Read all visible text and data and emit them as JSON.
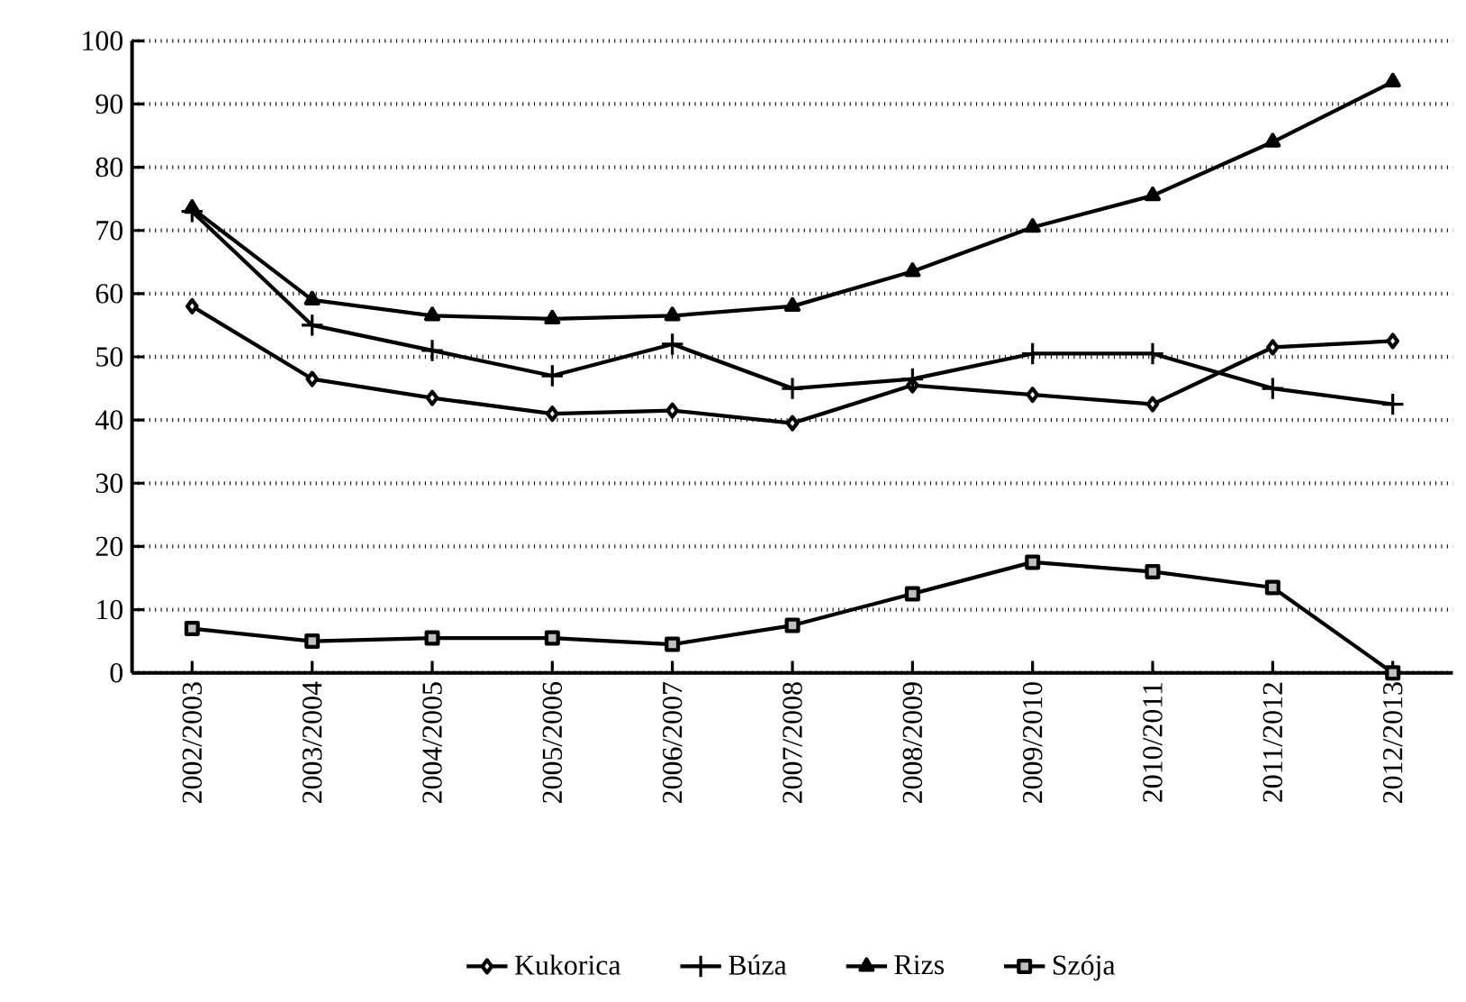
{
  "chart_data": {
    "type": "line",
    "categories": [
      "2002/2003",
      "2003/2004",
      "2004/2005",
      "2005/2006",
      "2006/2007",
      "2007/2008",
      "2008/2009",
      "2009/2010",
      "2010/2011",
      "2011/2012",
      "2012/2013"
    ],
    "series": [
      {
        "name": "Kukorica",
        "color": "#000000",
        "marker": "diamond",
        "values": [
          58,
          46.5,
          43.5,
          41,
          41.5,
          39.5,
          45.5,
          44,
          42.5,
          51.5,
          52.5
        ]
      },
      {
        "name": "Búza",
        "color": "#000000",
        "marker": "cross",
        "values": [
          73,
          55,
          51,
          47,
          52,
          45,
          46.5,
          50.5,
          50.5,
          45,
          42.5
        ]
      },
      {
        "name": "Rizs",
        "color": "#000000",
        "marker": "triangle",
        "values": [
          73.5,
          59,
          56.5,
          56,
          56.5,
          58,
          63.5,
          70.5,
          75.5,
          84,
          93.5
        ]
      },
      {
        "name": "Szója",
        "color": "#000000",
        "marker": "square",
        "values": [
          7,
          5,
          5.5,
          5.5,
          4.5,
          7.5,
          12.5,
          17.5,
          16,
          13.5,
          0
        ]
      }
    ],
    "ylim": [
      0,
      100
    ],
    "yticks": [
      0,
      10,
      20,
      30,
      40,
      50,
      60,
      70,
      80,
      90,
      100
    ],
    "grid": "y",
    "legend": "bottom",
    "line_style": "solid"
  }
}
